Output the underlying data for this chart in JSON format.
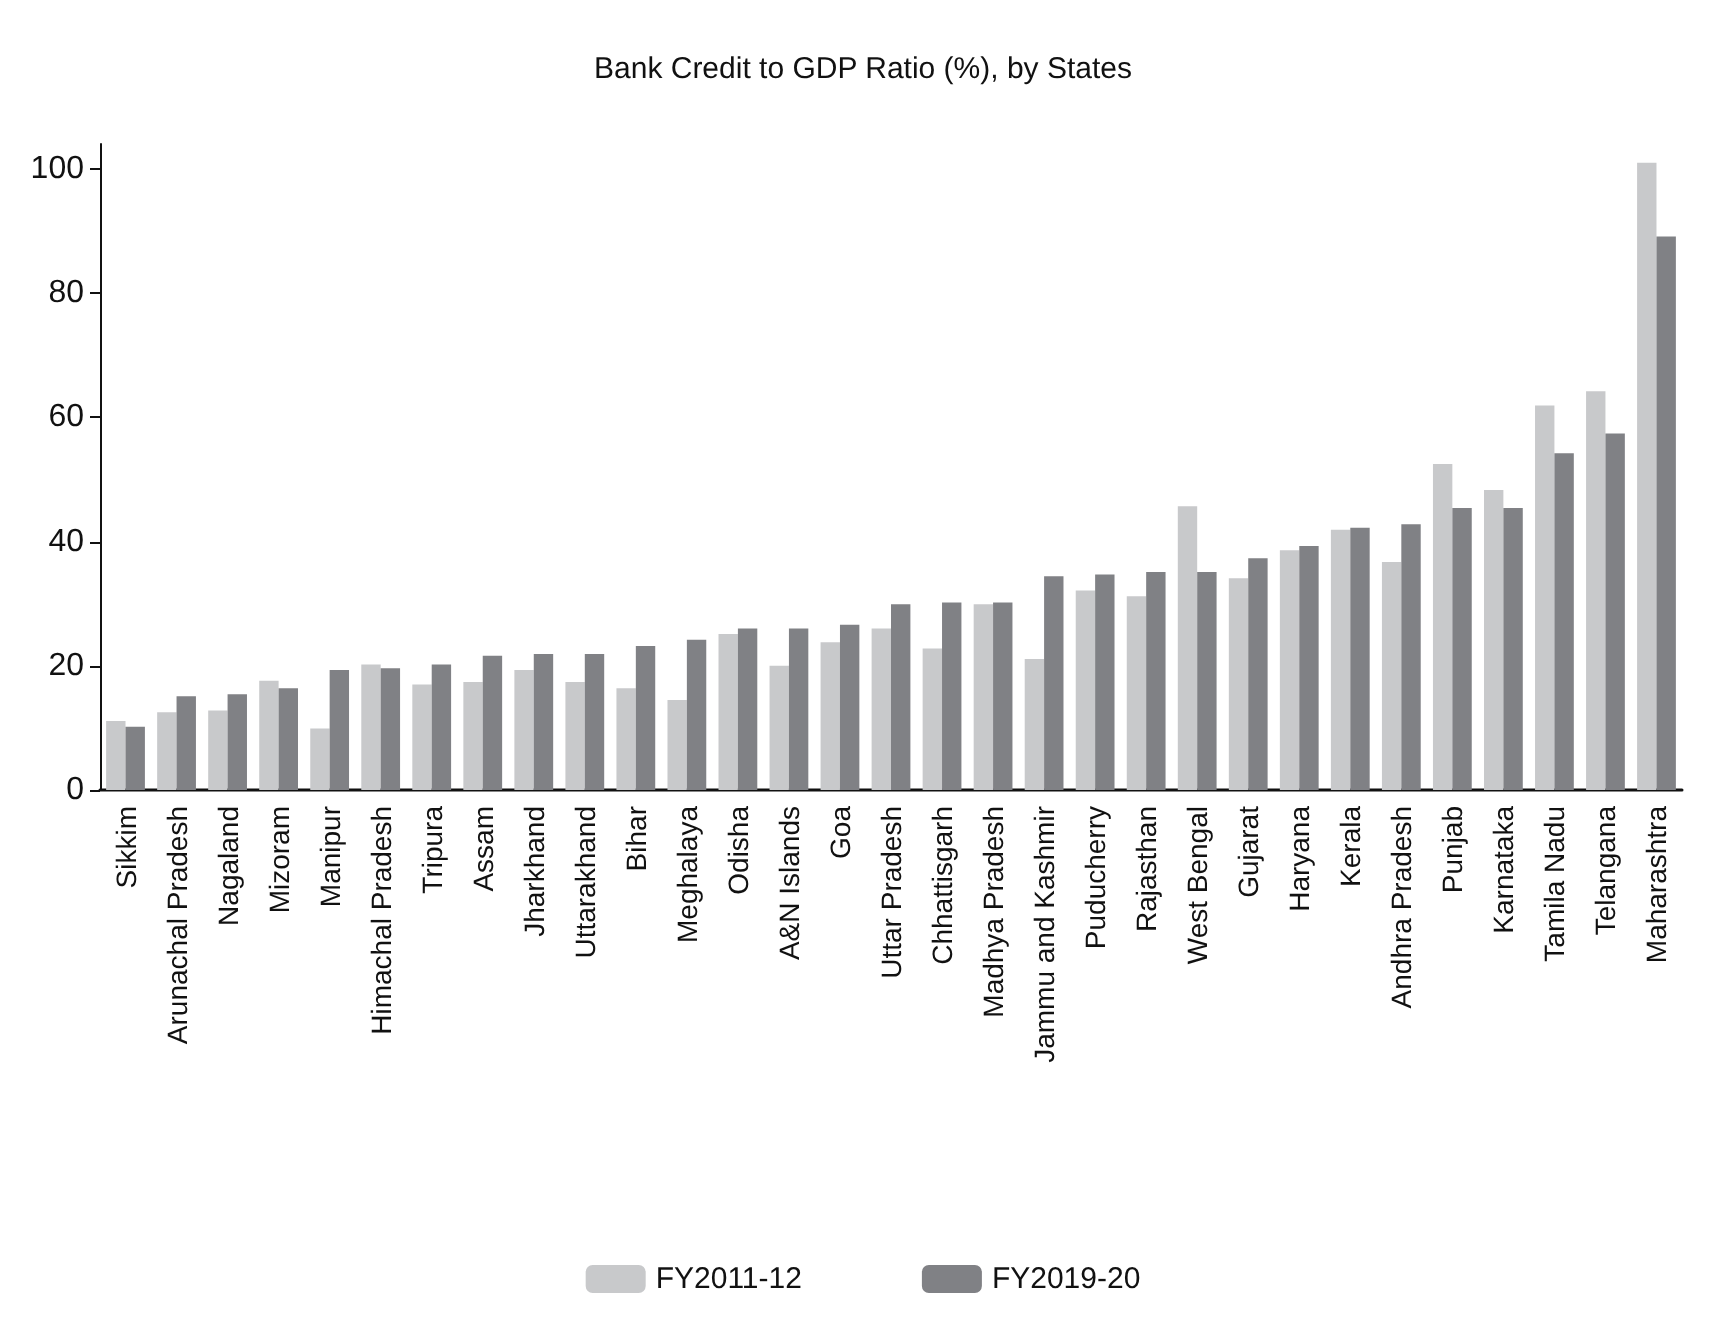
{
  "chart_data": {
    "type": "bar",
    "title": "Bank Credit to GDP Ratio (%), by States",
    "categories": [
      "Sikkim",
      "Arunachal Pradesh",
      "Nagaland",
      "Mizoram",
      "Manipur",
      "Himachal Pradesh",
      "Tripura",
      "Assam",
      "Jharkhand",
      "Uttarakhand",
      "Bihar",
      "Meghalaya",
      "Odisha",
      "A&N Islands",
      "Goa",
      "Uttar Pradesh",
      "Chhattisgarh",
      "Madhya Pradesh",
      "Jammu and Kashmir",
      "Puducherry",
      "Rajasthan",
      "West Bengal",
      "Gujarat",
      "Haryana",
      "Kerala",
      "Andhra Pradesh",
      "Punjab",
      "Karnataka",
      "Tamila Nadu",
      "Telangana",
      "Maharashtra"
    ],
    "series": [
      {
        "name": "FY2011-12",
        "color": "#c8c9cb",
        "values": [
          11.1,
          12.5,
          12.8,
          17.6,
          9.9,
          20.2,
          17.0,
          17.4,
          19.3,
          17.4,
          16.4,
          14.5,
          25.1,
          20.0,
          23.8,
          26.0,
          22.8,
          29.9,
          21.1,
          32.1,
          31.2,
          45.7,
          34.1,
          38.6,
          41.9,
          36.7,
          52.5,
          48.3,
          61.9,
          64.2,
          101
        ]
      },
      {
        "name": "FY2019-20",
        "color": "#808185",
        "values": [
          10.2,
          15.1,
          15.4,
          16.4,
          19.3,
          19.6,
          20.2,
          21.6,
          21.9,
          21.9,
          23.2,
          24.2,
          26.0,
          26.0,
          26.6,
          29.9,
          30.2,
          30.2,
          34.4,
          34.7,
          35.1,
          35.1,
          37.3,
          39.3,
          42.2,
          42.8,
          45.4,
          45.4,
          54.2,
          57.4,
          89.1
        ]
      }
    ],
    "ylim": [
      0,
      104
    ],
    "yticks": [
      0,
      20,
      40,
      60,
      80,
      100
    ],
    "grid": false,
    "legend": "bottom"
  }
}
